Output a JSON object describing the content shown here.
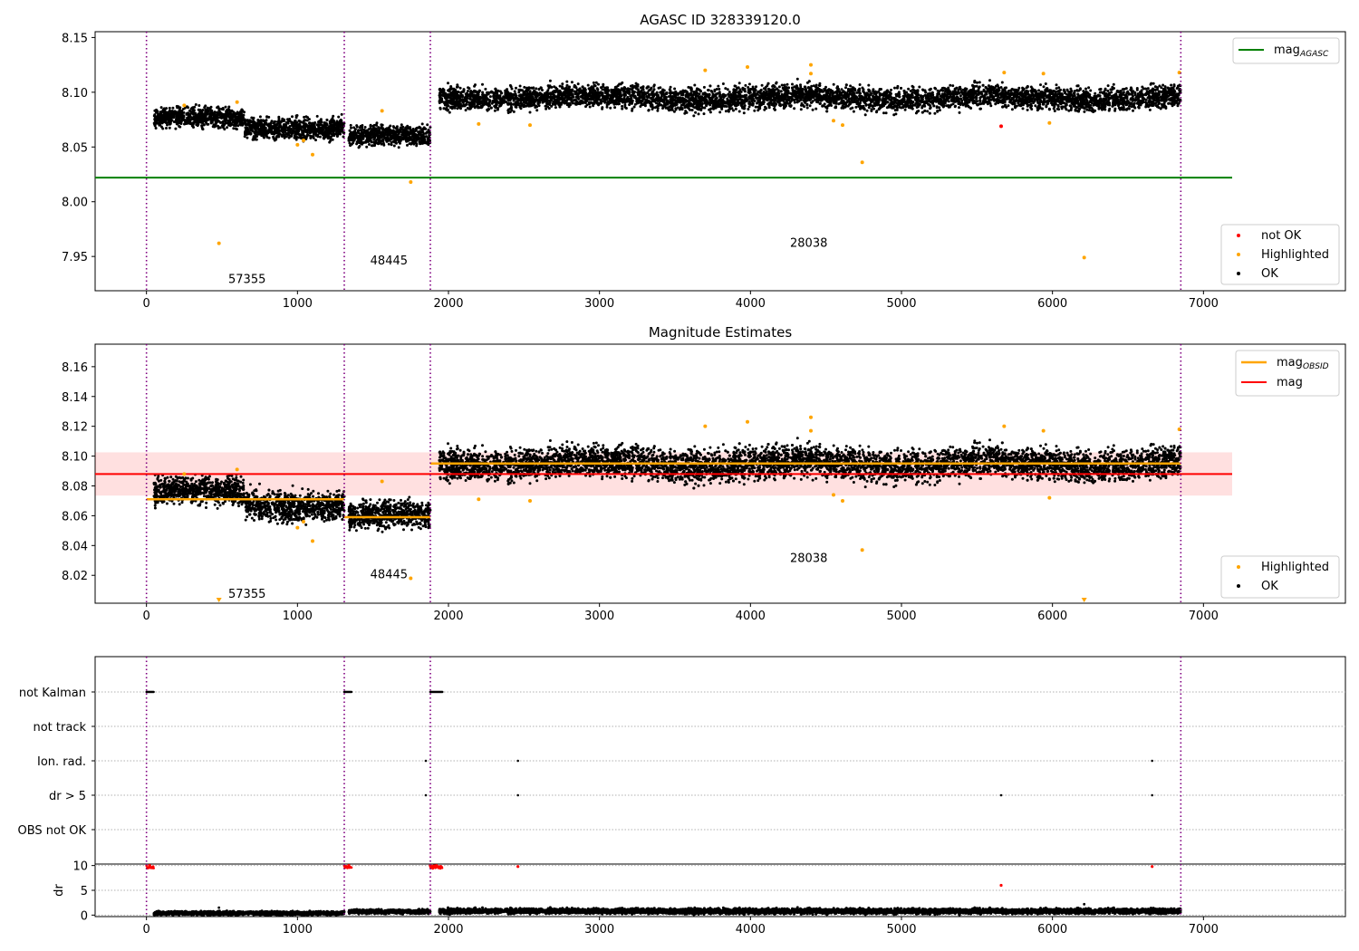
{
  "figure_title": "AGASC ID 328339120.0",
  "chart_data": [
    {
      "type": "scatter",
      "panel": "top",
      "title": "",
      "xlabel": "",
      "ylabel": "",
      "xlim": [
        -340,
        7940
      ],
      "ylim": [
        7.9187,
        8.1553
      ],
      "xticks": [
        0,
        1000,
        2000,
        3000,
        4000,
        5000,
        6000,
        7000
      ],
      "yticks": [
        7.95,
        8.0,
        8.05,
        8.1,
        8.15
      ],
      "ytick_labels": [
        "7.95",
        "8.00",
        "8.05",
        "8.10",
        "8.15"
      ],
      "grid": false,
      "obs_boundaries": [
        0,
        1310,
        1880,
        6850
      ],
      "obs_labels": [
        {
          "text": "57355",
          "x": 650,
          "y": 7.93
        },
        {
          "text": "48445",
          "x": 1590,
          "y": 7.947
        },
        {
          "text": "28038",
          "x": 4370,
          "y": 7.963
        }
      ],
      "segments": [
        {
          "x": [
            50,
            650
          ],
          "mean": 8.0755,
          "spread": 0.0075
        },
        {
          "x": [
            650,
            1310
          ],
          "mean": 8.068,
          "spread": 0.0085
        },
        {
          "x": [
            1340,
            1880
          ],
          "mean": 8.059,
          "spread": 0.0075
        },
        {
          "x": [
            1940,
            6850
          ],
          "mean": 8.095,
          "spread": 0.009
        }
      ],
      "lines": [
        {
          "name": "mag_AGASC",
          "y": 8.022,
          "x": [
            -340,
            7190
          ],
          "color": "#008000"
        }
      ],
      "series": [
        {
          "name": "not OK",
          "color": "#ff0000",
          "points": [
            [
              5660,
              8.069
            ]
          ]
        },
        {
          "name": "Highlighted",
          "color": "#ffa500",
          "points": [
            [
              480,
              7.962
            ],
            [
              250,
              8.088
            ],
            [
              600,
              8.091
            ],
            [
              1000,
              8.052
            ],
            [
              1040,
              8.056
            ],
            [
              1100,
              8.043
            ],
            [
              1560,
              8.083
            ],
            [
              1750,
              8.018
            ],
            [
              2200,
              8.071
            ],
            [
              2540,
              8.07
            ],
            [
              3700,
              8.12
            ],
            [
              3980,
              8.123
            ],
            [
              4400,
              8.125
            ],
            [
              4400,
              8.117
            ],
            [
              4550,
              8.074
            ],
            [
              4610,
              8.07
            ],
            [
              4740,
              8.036
            ],
            [
              5680,
              8.118
            ],
            [
              5940,
              8.117
            ],
            [
              5980,
              8.072
            ],
            [
              6210,
              7.949
            ],
            [
              6840,
              8.118
            ]
          ]
        },
        {
          "name": "OK",
          "color": "#000000",
          "points": []
        }
      ],
      "legend_lines": {
        "position": "upper-right",
        "entries": [
          {
            "label": "mag",
            "sub": "AGASC",
            "color": "#008000"
          }
        ]
      },
      "legend_points": {
        "position": "lower-right",
        "entries": [
          {
            "label": "not OK",
            "color": "#ff0000"
          },
          {
            "label": "Highlighted",
            "color": "#ffa500"
          },
          {
            "label": "OK",
            "color": "#000000"
          }
        ]
      }
    },
    {
      "type": "scatter",
      "panel": "middle",
      "title": "Magnitude Estimates",
      "xlabel": "",
      "ylabel": "",
      "xlim": [
        -340,
        7940
      ],
      "ylim": [
        8.0013,
        8.1751
      ],
      "xticks": [
        0,
        1000,
        2000,
        3000,
        4000,
        5000,
        6000,
        7000
      ],
      "yticks": [
        8.02,
        8.04,
        8.06,
        8.08,
        8.1,
        8.12,
        8.14,
        8.16
      ],
      "ytick_labels": [
        "8.02",
        "8.04",
        "8.06",
        "8.08",
        "8.10",
        "8.12",
        "8.14",
        "8.16"
      ],
      "grid": false,
      "obs_boundaries": [
        0,
        1310,
        1880,
        6850
      ],
      "obs_labels": [
        {
          "text": "57355",
          "x": 650,
          "y": 8.008
        },
        {
          "text": "48445",
          "x": 1590,
          "y": 8.021
        },
        {
          "text": "28038",
          "x": 4370,
          "y": 8.032
        }
      ],
      "segments": [
        {
          "x": [
            50,
            650
          ],
          "mean": 8.0755,
          "spread": 0.0075
        },
        {
          "x": [
            650,
            1310
          ],
          "mean": 8.068,
          "spread": 0.0085
        },
        {
          "x": [
            1340,
            1880
          ],
          "mean": 8.059,
          "spread": 0.0075
        },
        {
          "x": [
            1940,
            6850
          ],
          "mean": 8.095,
          "spread": 0.009
        }
      ],
      "mag": {
        "name": "mag",
        "y": 8.088,
        "band": [
          8.0735,
          8.1025
        ],
        "x": [
          -340,
          7190
        ],
        "color": "#ff0000"
      },
      "mag_obsid": [
        {
          "x": [
            0,
            1310
          ],
          "y": 8.071
        },
        {
          "x": [
            1310,
            1880
          ],
          "y": 8.059
        },
        {
          "x": [
            1880,
            6850
          ],
          "y": 8.095
        }
      ],
      "series": [
        {
          "name": "Highlighted",
          "color": "#ffa500",
          "points": [
            [
              250,
              8.088
            ],
            [
              600,
              8.091
            ],
            [
              1000,
              8.052
            ],
            [
              1040,
              8.056
            ],
            [
              1100,
              8.043
            ],
            [
              1560,
              8.083
            ],
            [
              1750,
              8.018
            ],
            [
              2200,
              8.071
            ],
            [
              2540,
              8.07
            ],
            [
              3700,
              8.12
            ],
            [
              3980,
              8.123
            ],
            [
              4400,
              8.126
            ],
            [
              4400,
              8.117
            ],
            [
              4550,
              8.074
            ],
            [
              4610,
              8.07
            ],
            [
              4740,
              8.037
            ],
            [
              5680,
              8.12
            ],
            [
              5940,
              8.117
            ],
            [
              5980,
              8.072
            ],
            [
              6840,
              8.118
            ]
          ]
        },
        {
          "name": "OK",
          "color": "#000000",
          "points": []
        }
      ],
      "clipped_markers": [
        480,
        6210
      ],
      "legend_lines": {
        "position": "upper-right",
        "entries": [
          {
            "label": "mag",
            "sub": "OBSID",
            "color": "#ffa500"
          },
          {
            "label": "mag",
            "sub": "",
            "color": "#ff0000"
          }
        ]
      },
      "legend_points": {
        "position": "lower-right",
        "entries": [
          {
            "label": "Highlighted",
            "color": "#ffa500"
          },
          {
            "label": "OK",
            "color": "#000000"
          }
        ]
      }
    },
    {
      "type": "scatter",
      "panel": "flags",
      "title": "",
      "xlim": [
        -340,
        7940
      ],
      "categories": [
        "not Kalman",
        "not track",
        "Ion. rad.",
        "dr > 5",
        "OBS not OK"
      ],
      "grid": true,
      "obs_boundaries": [
        0,
        1310,
        1880,
        6850
      ],
      "flags": {
        "not Kalman": {
          "ranges": [
            [
              0,
              50
            ],
            [
              1310,
              1360
            ],
            [
              1880,
              1960
            ]
          ],
          "points": []
        },
        "not track": {
          "ranges": [],
          "points": []
        },
        "Ion. rad.": {
          "ranges": [],
          "points": [
            1850,
            2460,
            6660
          ]
        },
        "dr > 5": {
          "ranges": [],
          "points": [
            1850,
            2460,
            5660,
            6660
          ]
        },
        "OBS not OK": {
          "ranges": [],
          "points": []
        }
      }
    },
    {
      "type": "scatter",
      "panel": "dr",
      "title": "",
      "ylabel": "dr",
      "xlim": [
        -340,
        7940
      ],
      "ylim": [
        -0.3,
        10.3
      ],
      "xticks": [
        0,
        1000,
        2000,
        3000,
        4000,
        5000,
        6000,
        7000
      ],
      "yticks": [
        0,
        5,
        10
      ],
      "ytick_labels": [
        "0",
        "5",
        "10"
      ],
      "grid": true,
      "obs_boundaries": [
        0,
        1310,
        1880,
        6850
      ],
      "red_points": [
        [
          20,
          10
        ],
        [
          1340,
          10
        ],
        [
          1880,
          10
        ],
        [
          1920,
          10
        ],
        [
          2460,
          9.8
        ],
        [
          5660,
          6
        ],
        [
          6660,
          9.8
        ]
      ],
      "red_ranges": [
        [
          0,
          50
        ],
        [
          1310,
          1360
        ],
        [
          1880,
          1960
        ]
      ],
      "highlight_points": [
        [
          480,
          1.5
        ],
        [
          1000,
          0.8
        ],
        [
          6210,
          2.2
        ]
      ],
      "segments": [
        {
          "x": [
            50,
            1310
          ],
          "mean": 0.4,
          "spread": 0.3
        },
        {
          "x": [
            1340,
            1880
          ],
          "mean": 0.7,
          "spread": 0.35
        },
        {
          "x": [
            1940,
            6850
          ],
          "mean": 0.8,
          "spread": 0.45
        }
      ]
    }
  ]
}
